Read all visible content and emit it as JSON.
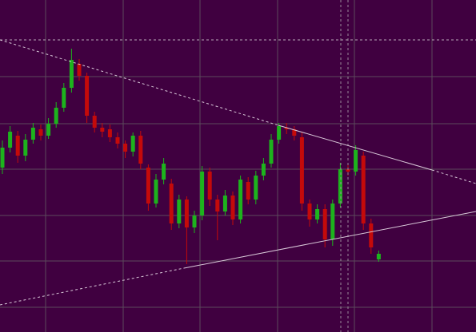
{
  "chart_data": {
    "type": "candlestick",
    "ylim": [
      0,
      416
    ],
    "up_color": "#1db31d",
    "down_color": "#c40a0a",
    "background": "#400040",
    "grid": true,
    "grid_color": "#5b4a5b",
    "open": [
      206,
      231,
      246,
      221,
      241,
      254,
      246,
      261,
      281,
      306,
      336,
      321,
      271,
      256,
      254,
      244,
      236,
      226,
      246,
      206,
      161,
      191,
      186,
      136,
      166,
      131,
      146,
      201,
      166,
      151,
      171,
      141,
      188,
      166,
      196,
      211,
      241,
      256,
      254,
      244,
      161,
      141,
      154,
      116,
      161,
      204,
      201,
      221,
      136,
      91
    ],
    "high": [
      240,
      258,
      252,
      248,
      262,
      260,
      268,
      288,
      312,
      355,
      342,
      325,
      276,
      262,
      260,
      250,
      240,
      250,
      252,
      210,
      198,
      218,
      192,
      172,
      170,
      152,
      208,
      206,
      172,
      178,
      176,
      196,
      194,
      202,
      218,
      248,
      262,
      262,
      258,
      250,
      166,
      160,
      160,
      166,
      212,
      210,
      234,
      226,
      142,
      102
    ],
    "low": [
      198,
      225,
      212,
      214,
      236,
      240,
      242,
      256,
      276,
      300,
      315,
      262,
      250,
      244,
      238,
      230,
      218,
      220,
      204,
      152,
      156,
      185,
      128,
      130,
      85,
      124,
      140,
      158,
      115,
      146,
      134,
      136,
      160,
      160,
      190,
      206,
      236,
      248,
      240,
      152,
      132,
      136,
      106,
      108,
      156,
      196,
      196,
      128,
      98,
      88
    ],
    "close": [
      231,
      251,
      221,
      241,
      256,
      246,
      261,
      281,
      306,
      341,
      321,
      271,
      256,
      251,
      244,
      236,
      226,
      246,
      211,
      161,
      191,
      211,
      136,
      166,
      131,
      146,
      201,
      166,
      151,
      171,
      141,
      191,
      166,
      196,
      211,
      241,
      258,
      254,
      246,
      161,
      141,
      154,
      116,
      161,
      204,
      201,
      228,
      136,
      106,
      98
    ]
  }
}
